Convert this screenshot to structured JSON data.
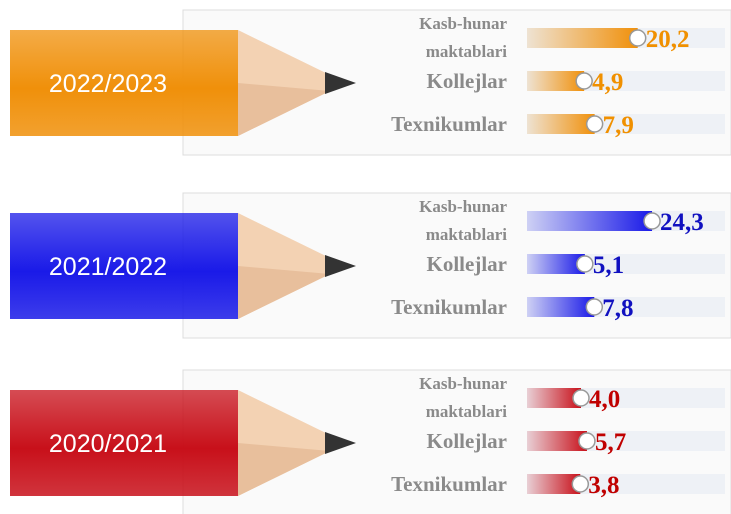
{
  "chart_data": [
    {
      "type": "bar",
      "title": "2022/2023",
      "color": "#f0900a",
      "label_color": "#f09000",
      "categories": [
        "Kasb-hunar maktablari",
        "Kollejlar",
        "Texnikumlar"
      ],
      "values": [
        20.2,
        4.9,
        7.9
      ],
      "value_labels": [
        "20,2",
        "4,9",
        "7,9"
      ]
    },
    {
      "type": "bar",
      "title": "2021/2022",
      "color": "#1a1ae8",
      "label_color": "#1010c0",
      "categories": [
        "Kasb-hunar maktablari",
        "Kollejlar",
        "Texnikumlar"
      ],
      "values": [
        24.3,
        5.1,
        7.8
      ],
      "value_labels": [
        "24,3",
        "5,1",
        "7,8"
      ]
    },
    {
      "type": "bar",
      "title": "2020/2021",
      "color": "#c8101a",
      "label_color": "#c00000",
      "categories": [
        "Kasb-hunar maktablari",
        "Kollejlar",
        "Texnikumlar"
      ],
      "values": [
        4.0,
        5.7,
        3.8
      ],
      "value_labels": [
        "4,0",
        "5,7",
        "3,8"
      ]
    }
  ]
}
